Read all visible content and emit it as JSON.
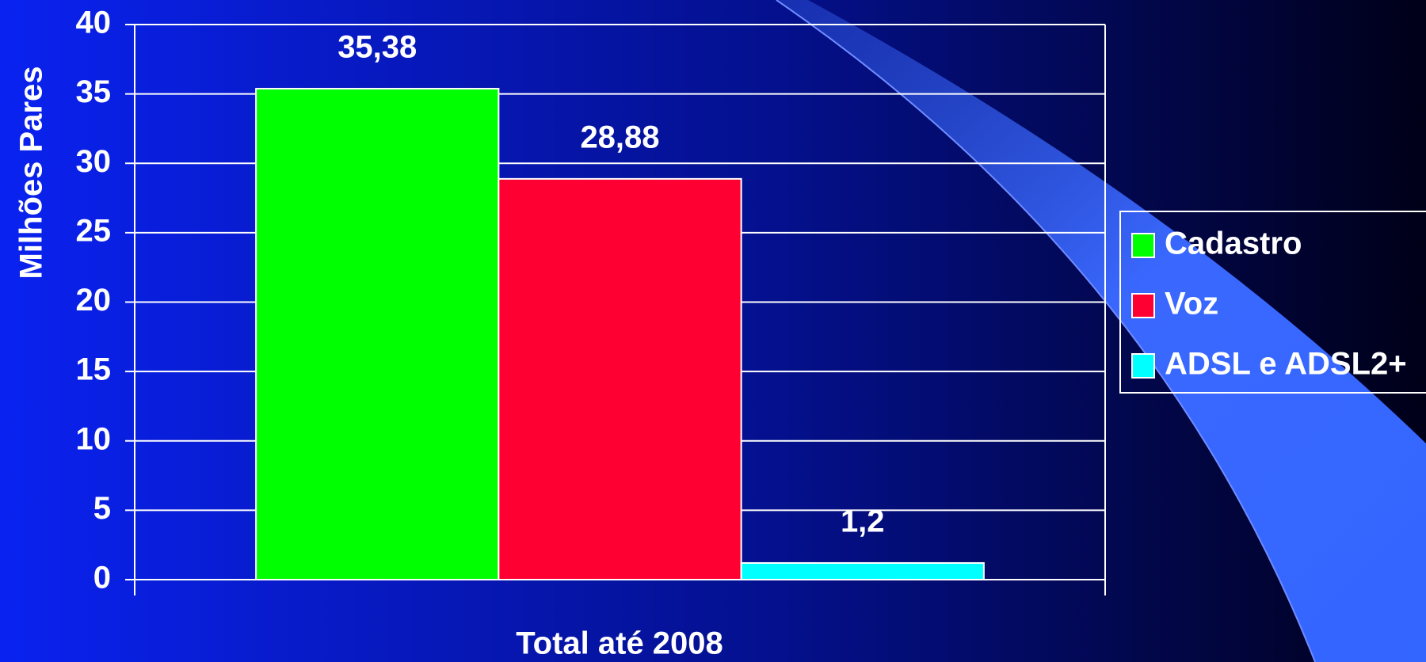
{
  "chart_data": {
    "type": "bar",
    "x_label": "Total até 2008",
    "y_label": "Milhões Pares",
    "categories": [
      "Total até 2008"
    ],
    "series": [
      {
        "name": "Cadastro",
        "color": "#00ff00",
        "values": [
          35.38
        ],
        "value_labels": [
          "35,38"
        ]
      },
      {
        "name": "Voz",
        "color": "#ff0033",
        "values": [
          28.88
        ],
        "value_labels": [
          "28,88"
        ]
      },
      {
        "name": "ADSL e ADSL2+",
        "color": "#00ffff",
        "values": [
          1.2
        ],
        "value_labels": [
          "1,2"
        ]
      }
    ],
    "ylim": [
      0,
      40
    ],
    "yticks": [
      0,
      5,
      10,
      15,
      20,
      25,
      30,
      35,
      40
    ],
    "grid": true,
    "legend": "right"
  }
}
